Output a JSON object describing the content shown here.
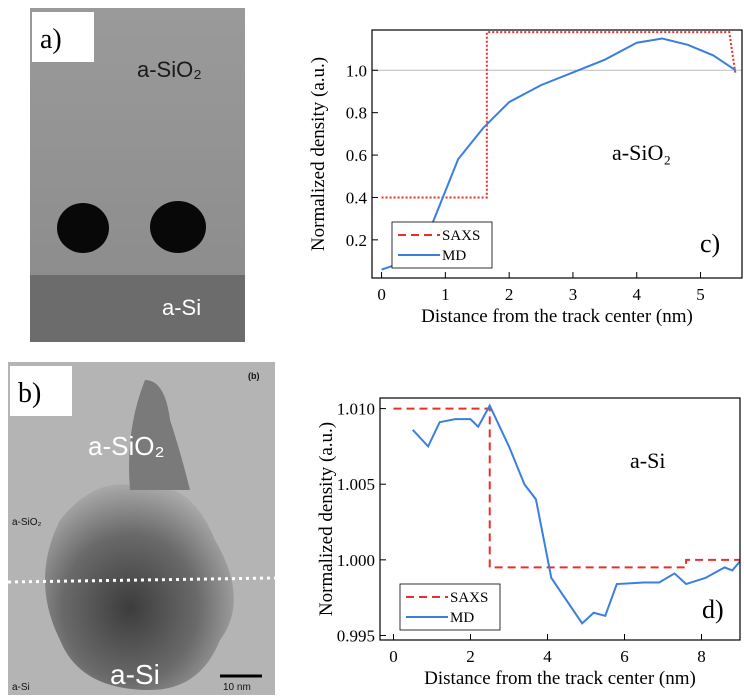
{
  "panels": {
    "a": {
      "label": "a)",
      "texts": [
        "a-SiO₂",
        "a-Si"
      ]
    },
    "b": {
      "label": "b)",
      "tag": "(b)",
      "texts": [
        "a-SiO₂",
        "a-SiO₂",
        "a-Si",
        "a-Si"
      ],
      "scale": "10 nm"
    }
  },
  "chart_data": [
    {
      "type": "line",
      "x_label": "Distance from the track center (nm)",
      "y_label": "Normalized density (a.u.)",
      "annotation": "a-SiO₂",
      "panel": "c)",
      "xlim": [
        -0.15,
        5.65
      ],
      "ylim": [
        0.02,
        1.19
      ],
      "xticks": [
        0,
        1,
        2,
        3,
        4,
        5
      ],
      "yticks": [
        0.2,
        0.4,
        0.6,
        0.8,
        {
          "value": 1,
          "label": "1.0"
        }
      ],
      "reference_line": 1,
      "legend": "lower left",
      "series": [
        {
          "name": "SAXS",
          "color": "#e8302a",
          "style": "dotted",
          "x": [
            0,
            1.65,
            1.65,
            5.45,
            5.55
          ],
          "values": [
            0.4,
            0.4,
            1.18,
            1.18,
            0.98
          ]
        },
        {
          "name": "MD",
          "color": "#3a7fe0",
          "style": "solid",
          "x": [
            0,
            0.4,
            0.8,
            1.2,
            1.6,
            2,
            2.5,
            3,
            3.5,
            4,
            4.4,
            4.8,
            5.2,
            5.55
          ],
          "values": [
            0.06,
            0.1,
            0.28,
            0.58,
            0.73,
            0.85,
            0.93,
            0.99,
            1.05,
            1.13,
            1.15,
            1.12,
            1.07,
            1.0
          ]
        }
      ]
    },
    {
      "type": "line",
      "x_label": "Distance from the track center (nm)",
      "y_label": "Normalized density (a.u.)",
      "annotation": "a-Si",
      "panel": "d)",
      "xlim": [
        -0.35,
        9
      ],
      "ylim": [
        0.9947,
        1.0107
      ],
      "xticks": [
        0,
        2,
        4,
        6,
        8
      ],
      "yticks": [
        0.995,
        {
          "value": 1,
          "label": "1.000"
        },
        1.005,
        {
          "value": 1.01,
          "label": "1.010"
        }
      ],
      "legend": "lower left",
      "series": [
        {
          "name": "SAXS",
          "color": "#e8302a",
          "style": "dashed",
          "x": [
            0,
            2.5,
            2.5,
            7.6,
            7.6,
            9
          ],
          "values": [
            1.01,
            1.01,
            0.9995,
            0.9995,
            1.0,
            1.0
          ]
        },
        {
          "name": "MD",
          "color": "#3a7fe0",
          "style": "solid",
          "x": [
            0.5,
            0.9,
            1.2,
            1.6,
            2.0,
            2.2,
            2.5,
            3.0,
            3.4,
            3.7,
            4.1,
            4.9,
            5.2,
            5.5,
            5.8,
            6.5,
            6.9,
            7.3,
            7.6,
            8.1,
            8.6,
            8.8,
            9.0
          ],
          "values": [
            1.0086,
            1.0075,
            1.0091,
            1.0093,
            1.0093,
            1.0088,
            1.0102,
            1.0075,
            1.005,
            1.004,
            0.9988,
            0.9958,
            0.9965,
            0.9963,
            0.9984,
            0.9985,
            0.9985,
            0.9991,
            0.9984,
            0.9988,
            0.9995,
            0.9993,
            0.9999
          ]
        }
      ]
    }
  ]
}
